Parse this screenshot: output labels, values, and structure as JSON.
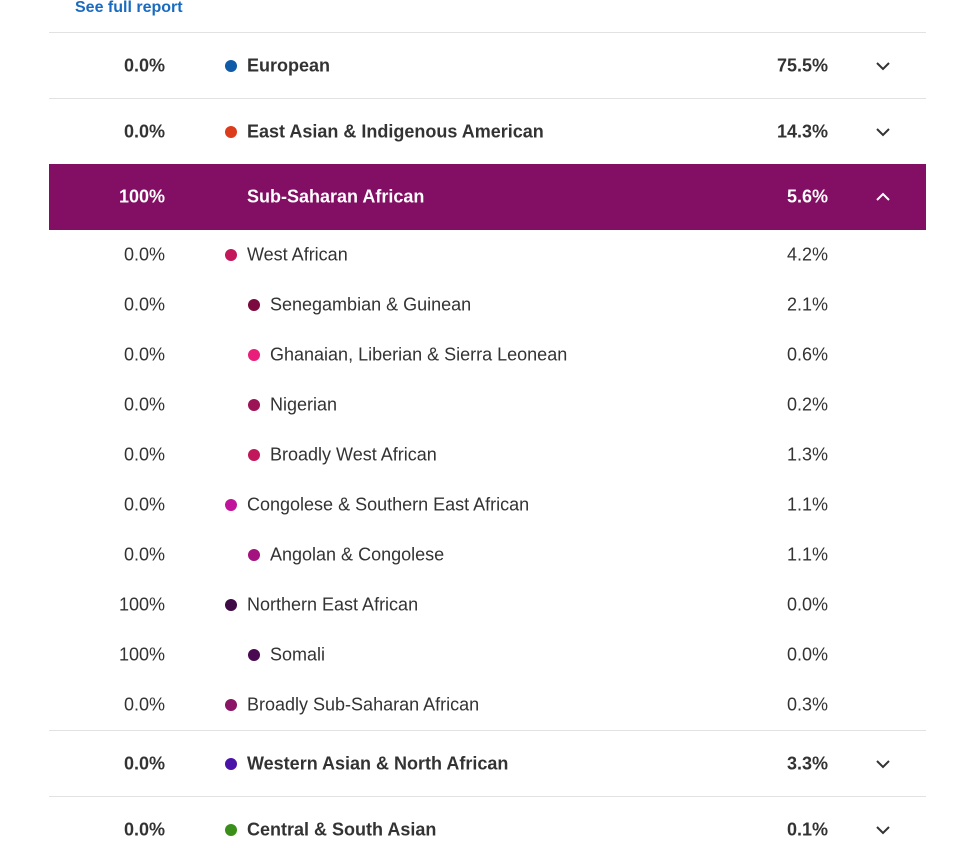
{
  "link": "See full report",
  "rows": [
    {
      "left": "0.0%",
      "name": "European",
      "right": "75.5%",
      "color": "#0f5ba7",
      "level": 0,
      "expanded": false
    },
    {
      "left": "0.0%",
      "name": "East Asian & Indigenous American",
      "right": "14.3%",
      "color": "#dd3c1c",
      "level": 0,
      "expanded": false
    },
    {
      "left": "100%",
      "name": "Sub-Saharan African",
      "right": "5.6%",
      "color": "#820f63",
      "level": 0,
      "expanded": true
    },
    {
      "left": "0.0%",
      "name": "West African",
      "right": "4.2%",
      "color": "#c2185b",
      "level": 1
    },
    {
      "left": "0.0%",
      "name": "Senegambian & Guinean",
      "right": "2.1%",
      "color": "#7a0a3f",
      "level": 2
    },
    {
      "left": "0.0%",
      "name": "Ghanaian, Liberian & Sierra Leonean",
      "right": "0.6%",
      "color": "#e91e7a",
      "level": 2
    },
    {
      "left": "0.0%",
      "name": "Nigerian",
      "right": "0.2%",
      "color": "#9c1456",
      "level": 2
    },
    {
      "left": "0.0%",
      "name": "Broadly West African",
      "right": "1.3%",
      "color": "#c2185b",
      "level": 2
    },
    {
      "left": "0.0%",
      "name": "Congolese & Southern East African",
      "right": "1.1%",
      "color": "#c0129a",
      "level": 1
    },
    {
      "left": "0.0%",
      "name": "Angolan & Congolese",
      "right": "1.1%",
      "color": "#a3127f",
      "level": 2
    },
    {
      "left": "100%",
      "name": "Northern East African",
      "right": "0.0%",
      "color": "#3f0a45",
      "level": 1
    },
    {
      "left": "100%",
      "name": "Somali",
      "right": "0.0%",
      "color": "#4a0a52",
      "level": 2
    },
    {
      "left": "0.0%",
      "name": "Broadly Sub-Saharan African",
      "right": "0.3%",
      "color": "#8a1465",
      "level": 1
    },
    {
      "left": "0.0%",
      "name": "Western Asian & North African",
      "right": "3.3%",
      "color": "#4a12a8",
      "level": 0,
      "expanded": false
    },
    {
      "left": "0.0%",
      "name": "Central & South Asian",
      "right": "0.1%",
      "color": "#3a8f1a",
      "level": 0,
      "expanded": false
    }
  ]
}
